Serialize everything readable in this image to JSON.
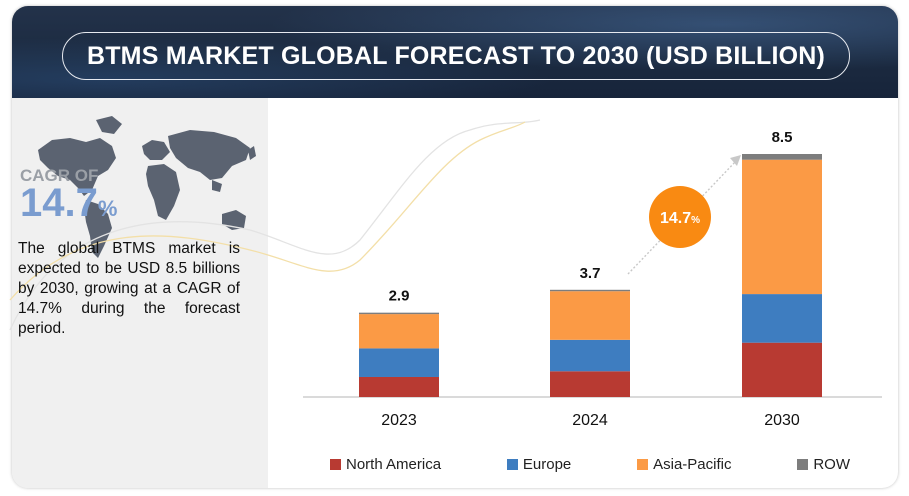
{
  "title": "BTMS MARKET GLOBAL FORECAST TO 2030 (USD BILLION)",
  "cagr": {
    "label": "CAGR OF",
    "value": "14.7",
    "unit": "%",
    "badge_value": "14.7",
    "badge_unit": "%",
    "badge_color": "#f98a12"
  },
  "description": "The global BTMS market is expected to be USD 8.5 billions by 2030, growing at a CAGR of 14.7% during the forecast period.",
  "colors": {
    "north_america": "#b83a32",
    "europe": "#3e7dc0",
    "asia_pacific": "#fb9a45",
    "row": "#7d7d7d"
  },
  "chart_data": {
    "type": "bar",
    "stacked": true,
    "categories": [
      "2023",
      "2024",
      "2030"
    ],
    "totals": [
      2.9,
      3.7,
      8.5
    ],
    "total_labels": [
      "2.9",
      "3.7",
      "8.5"
    ],
    "series": [
      {
        "name": "North America",
        "values": [
          0.7,
          0.9,
          1.9
        ],
        "color": "#b83a32"
      },
      {
        "name": "Europe",
        "values": [
          1.0,
          1.1,
          1.7
        ],
        "color": "#3e7dc0"
      },
      {
        "name": "Asia-Pacific",
        "values": [
          1.2,
          1.7,
          4.7
        ],
        "color": "#fb9a45"
      },
      {
        "name": "ROW",
        "values": [
          0.05,
          0.05,
          0.2
        ],
        "color": "#7d7d7d"
      }
    ],
    "legend_position": "bottom",
    "grid": false,
    "annotation": "14.7%"
  }
}
